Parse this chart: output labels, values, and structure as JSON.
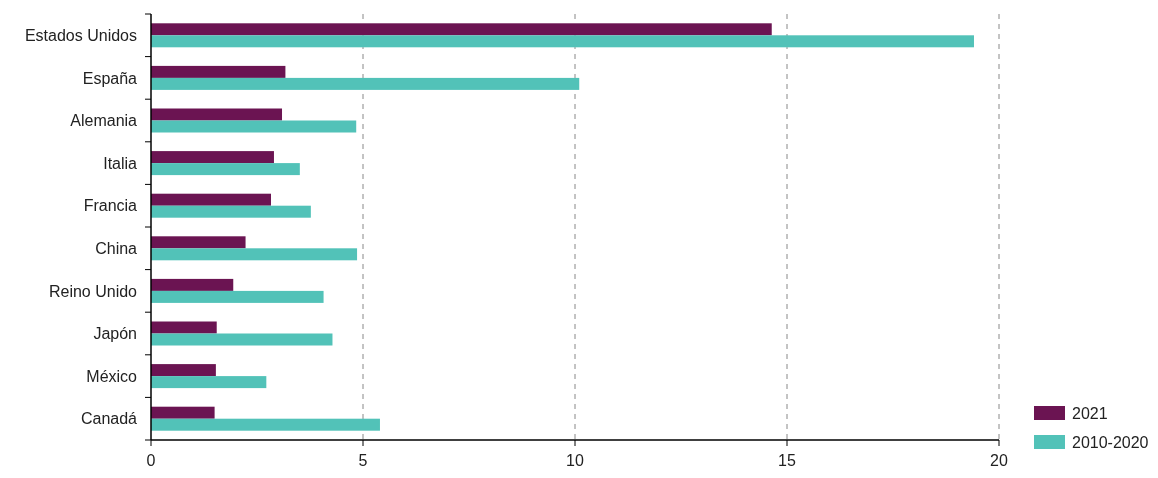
{
  "chart_data": {
    "type": "bar",
    "orientation": "horizontal",
    "categories": [
      "Estados Unidos",
      "España",
      "Alemania",
      "Italia",
      "Francia",
      "China",
      "Reino Unido",
      "Japón",
      "México",
      "Canadá"
    ],
    "series": [
      {
        "name": "2021",
        "color": "#6b1452",
        "values": [
          14.64,
          3.17,
          3.09,
          2.9,
          2.83,
          2.23,
          1.94,
          1.55,
          1.53,
          1.5
        ]
      },
      {
        "name": "2010-2020",
        "color": "#52c2b8",
        "values": [
          19.41,
          10.1,
          4.84,
          3.51,
          3.77,
          4.86,
          4.07,
          4.28,
          2.72,
          5.4
        ]
      }
    ],
    "xlim": [
      0,
      20
    ],
    "xticks": [
      0,
      5,
      10,
      15,
      20
    ],
    "grid": "x",
    "legend": "bottom right"
  }
}
